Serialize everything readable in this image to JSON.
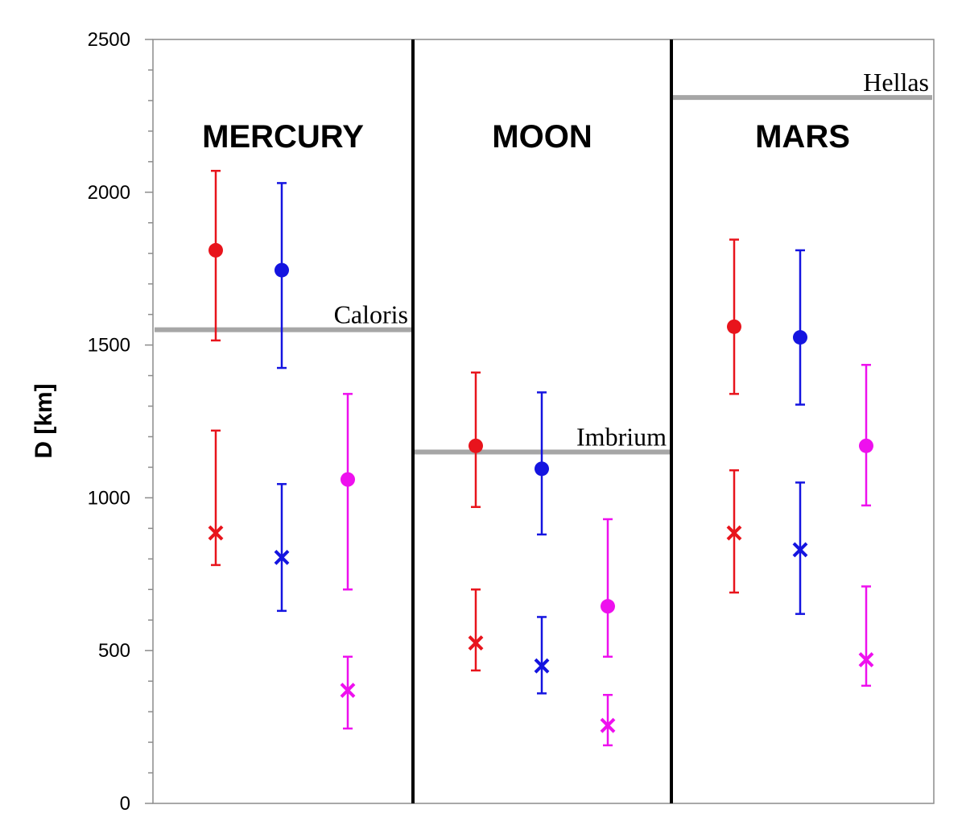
{
  "chart_data": {
    "type": "scatter",
    "ylabel": "D  [km]",
    "ylim": [
      0,
      2500
    ],
    "y_ticks": [
      "0",
      "500",
      "1000",
      "1500",
      "2000",
      "2500"
    ],
    "grid": false,
    "colors": {
      "red": "#e8141c",
      "blue": "#1414e0",
      "magenta": "#ee10ee",
      "reference": "#a6a6a6"
    },
    "panels": [
      {
        "name": "MERCURY",
        "reference": {
          "label": "Caloris",
          "value": 1550
        },
        "points": [
          {
            "color": "red",
            "marker": "circle",
            "value": 1810,
            "low": 1515,
            "high": 2070
          },
          {
            "color": "red",
            "marker": "cross",
            "value": 885,
            "low": 780,
            "high": 1220
          },
          {
            "color": "blue",
            "marker": "circle",
            "value": 1745,
            "low": 1425,
            "high": 2030
          },
          {
            "color": "blue",
            "marker": "cross",
            "value": 805,
            "low": 630,
            "high": 1045
          },
          {
            "color": "magenta",
            "marker": "circle",
            "value": 1060,
            "low": 700,
            "high": 1340
          },
          {
            "color": "magenta",
            "marker": "cross",
            "value": 370,
            "low": 245,
            "high": 480
          }
        ]
      },
      {
        "name": "MOON",
        "reference": {
          "label": "Imbrium",
          "value": 1150
        },
        "points": [
          {
            "color": "red",
            "marker": "circle",
            "value": 1170,
            "low": 970,
            "high": 1410
          },
          {
            "color": "red",
            "marker": "cross",
            "value": 525,
            "low": 435,
            "high": 700
          },
          {
            "color": "blue",
            "marker": "circle",
            "value": 1095,
            "low": 880,
            "high": 1345
          },
          {
            "color": "blue",
            "marker": "cross",
            "value": 450,
            "low": 360,
            "high": 610
          },
          {
            "color": "magenta",
            "marker": "circle",
            "value": 645,
            "low": 480,
            "high": 930
          },
          {
            "color": "magenta",
            "marker": "cross",
            "value": 255,
            "low": 190,
            "high": 355
          }
        ]
      },
      {
        "name": "MARS",
        "reference": {
          "label": "Hellas",
          "value": 2310
        },
        "points": [
          {
            "color": "red",
            "marker": "circle",
            "value": 1560,
            "low": 1340,
            "high": 1845
          },
          {
            "color": "red",
            "marker": "cross",
            "value": 885,
            "low": 690,
            "high": 1090
          },
          {
            "color": "blue",
            "marker": "circle",
            "value": 1525,
            "low": 1305,
            "high": 1810
          },
          {
            "color": "blue",
            "marker": "cross",
            "value": 830,
            "low": 620,
            "high": 1050
          },
          {
            "color": "magenta",
            "marker": "circle",
            "value": 1170,
            "low": 975,
            "high": 1435
          },
          {
            "color": "magenta",
            "marker": "cross",
            "value": 470,
            "low": 385,
            "high": 710
          }
        ]
      }
    ]
  }
}
